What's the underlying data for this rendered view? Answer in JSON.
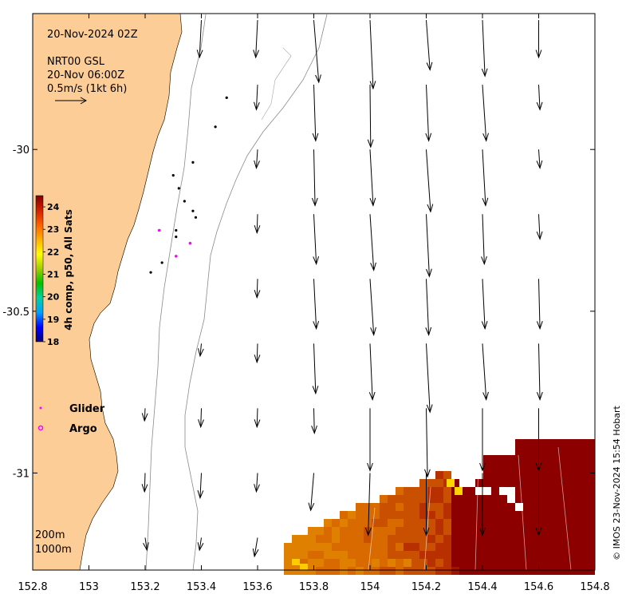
{
  "map": {
    "date_label": "20-Nov-2024 02Z",
    "product_label": "NRT00 GSL",
    "product_time": "20-Nov 06:00Z",
    "scale_label": "0.5m/s (1kt 6h)",
    "x_ticks": [
      "152.8",
      "153",
      "153.2",
      "153.4",
      "153.6",
      "153.8",
      "154",
      "154.2",
      "154.4",
      "154.6",
      "154.8"
    ],
    "y_ticks": [
      "-30",
      "-30.5",
      "-31"
    ],
    "y_tick_values": [
      -30,
      -30.5,
      -31
    ],
    "x_range": [
      152.8,
      154.8
    ],
    "y_range": [
      -29.58,
      -31.3
    ],
    "footer_credit": "© IMOS 23-Nov-2024 15:54 Hobart",
    "isobaths": [
      "200m",
      "1000m"
    ],
    "colors": {
      "land": "#fdcd98",
      "ocean": "#ffffff",
      "contour": "#888888",
      "argo": "#ff00ff"
    }
  },
  "colorbar": {
    "title": "4h comp, p50, All Sats",
    "ticks": [
      "24",
      "23",
      "22",
      "21",
      "20",
      "19",
      "18"
    ],
    "range": [
      18,
      24.5
    ],
    "stops": [
      "#000080",
      "#0000ff",
      "#00a0ff",
      "#00d0a0",
      "#00c000",
      "#a0d000",
      "#ffff00",
      "#ffb000",
      "#ff6000",
      "#d02000",
      "#800000"
    ]
  },
  "legend": {
    "glider_label": "Glider",
    "argo_label": "Argo"
  },
  "velocity_vectors": [
    {
      "lon": 153.4,
      "lat": -29.6,
      "u": -0.03,
      "v": -0.6
    },
    {
      "lon": 153.6,
      "lat": -29.6,
      "u": -0.03,
      "v": -0.6
    },
    {
      "lon": 153.8,
      "lat": -29.6,
      "u": 0.08,
      "v": -1.0
    },
    {
      "lon": 154.0,
      "lat": -29.6,
      "u": 0.05,
      "v": -1.1
    },
    {
      "lon": 154.2,
      "lat": -29.6,
      "u": 0.06,
      "v": -0.8
    },
    {
      "lon": 154.4,
      "lat": -29.6,
      "u": 0.04,
      "v": -0.9
    },
    {
      "lon": 154.6,
      "lat": -29.6,
      "u": 0.0,
      "v": -0.6
    },
    {
      "lon": 153.6,
      "lat": -29.8,
      "u": -0.02,
      "v": -0.4
    },
    {
      "lon": 153.8,
      "lat": -29.8,
      "u": 0.03,
      "v": -0.9
    },
    {
      "lon": 154.0,
      "lat": -29.8,
      "u": 0.01,
      "v": -1.0
    },
    {
      "lon": 154.2,
      "lat": -29.8,
      "u": 0.04,
      "v": -0.9
    },
    {
      "lon": 154.4,
      "lat": -29.8,
      "u": 0.06,
      "v": -0.9
    },
    {
      "lon": 154.6,
      "lat": -29.8,
      "u": 0.02,
      "v": -0.4
    },
    {
      "lon": 153.6,
      "lat": -30.0,
      "u": -0.02,
      "v": -0.3
    },
    {
      "lon": 153.8,
      "lat": -30.0,
      "u": 0.02,
      "v": -0.9
    },
    {
      "lon": 154.0,
      "lat": -30.0,
      "u": 0.05,
      "v": -0.9
    },
    {
      "lon": 154.2,
      "lat": -30.0,
      "u": 0.07,
      "v": -1.0
    },
    {
      "lon": 154.4,
      "lat": -30.0,
      "u": 0.05,
      "v": -0.9
    },
    {
      "lon": 154.6,
      "lat": -30.0,
      "u": 0.02,
      "v": -0.3
    },
    {
      "lon": 153.6,
      "lat": -30.2,
      "u": -0.01,
      "v": -0.3
    },
    {
      "lon": 153.8,
      "lat": -30.2,
      "u": 0.04,
      "v": -0.8
    },
    {
      "lon": 154.0,
      "lat": -30.2,
      "u": 0.06,
      "v": -0.9
    },
    {
      "lon": 154.2,
      "lat": -30.2,
      "u": 0.05,
      "v": -1.0
    },
    {
      "lon": 154.4,
      "lat": -30.2,
      "u": 0.03,
      "v": -0.8
    },
    {
      "lon": 154.6,
      "lat": -30.2,
      "u": 0.02,
      "v": -0.4
    },
    {
      "lon": 153.6,
      "lat": -30.4,
      "u": -0.01,
      "v": -0.3
    },
    {
      "lon": 153.8,
      "lat": -30.4,
      "u": 0.04,
      "v": -0.8
    },
    {
      "lon": 154.0,
      "lat": -30.4,
      "u": 0.06,
      "v": -0.9
    },
    {
      "lon": 154.2,
      "lat": -30.4,
      "u": 0.04,
      "v": -0.9
    },
    {
      "lon": 154.4,
      "lat": -30.4,
      "u": 0.04,
      "v": -0.8
    },
    {
      "lon": 154.6,
      "lat": -30.4,
      "u": 0.02,
      "v": -0.8
    },
    {
      "lon": 153.4,
      "lat": -30.6,
      "u": -0.02,
      "v": -0.2
    },
    {
      "lon": 153.6,
      "lat": -30.6,
      "u": -0.01,
      "v": -0.3
    },
    {
      "lon": 153.8,
      "lat": -30.6,
      "u": 0.03,
      "v": -0.8
    },
    {
      "lon": 154.0,
      "lat": -30.6,
      "u": 0.04,
      "v": -0.9
    },
    {
      "lon": 154.2,
      "lat": -30.6,
      "u": 0.06,
      "v": -1.1
    },
    {
      "lon": 154.4,
      "lat": -30.6,
      "u": 0.06,
      "v": -0.9
    },
    {
      "lon": 154.6,
      "lat": -30.6,
      "u": 0.02,
      "v": -0.9
    },
    {
      "lon": 153.2,
      "lat": -30.8,
      "u": -0.01,
      "v": -0.2
    },
    {
      "lon": 153.4,
      "lat": -30.8,
      "u": -0.01,
      "v": -0.3
    },
    {
      "lon": 153.6,
      "lat": -30.8,
      "u": -0.01,
      "v": -0.3
    },
    {
      "lon": 153.8,
      "lat": -30.8,
      "u": 0.01,
      "v": -0.4
    },
    {
      "lon": 154.0,
      "lat": -30.8,
      "u": 0.0,
      "v": -1.0
    },
    {
      "lon": 154.2,
      "lat": -30.8,
      "u": 0.02,
      "v": -1.1
    },
    {
      "lon": 154.4,
      "lat": -30.8,
      "u": 0.0,
      "v": -1.0
    },
    {
      "lon": 154.6,
      "lat": -30.8,
      "u": 0.0,
      "v": -1.0
    },
    {
      "lon": 153.2,
      "lat": -31.0,
      "u": -0.01,
      "v": -0.3
    },
    {
      "lon": 153.4,
      "lat": -31.0,
      "u": -0.02,
      "v": -0.4
    },
    {
      "lon": 153.6,
      "lat": -31.0,
      "u": -0.02,
      "v": -0.3
    },
    {
      "lon": 153.8,
      "lat": -31.0,
      "u": -0.05,
      "v": -0.6
    },
    {
      "lon": 154.0,
      "lat": -31.0,
      "u": -0.03,
      "v": -1.0
    },
    {
      "lon": 154.2,
      "lat": -31.0,
      "u": 0.0,
      "v": -1.0
    },
    {
      "lon": 154.4,
      "lat": -31.0,
      "u": 0.0,
      "v": -1.0
    },
    {
      "lon": 154.6,
      "lat": -31.0,
      "u": 0.0,
      "v": -1.0
    },
    {
      "lon": 153.2,
      "lat": -31.2,
      "u": 0.03,
      "v": -0.2
    },
    {
      "lon": 153.4,
      "lat": -31.2,
      "u": -0.03,
      "v": -0.2
    },
    {
      "lon": 153.6,
      "lat": -31.2,
      "u": -0.05,
      "v": -0.3
    }
  ],
  "glider_positions": [
    {
      "lon": 153.49,
      "lat": -29.84
    },
    {
      "lon": 153.45,
      "lat": -29.93
    },
    {
      "lon": 153.37,
      "lat": -30.04
    },
    {
      "lon": 153.3,
      "lat": -30.08
    },
    {
      "lon": 153.32,
      "lat": -30.12
    },
    {
      "lon": 153.34,
      "lat": -30.16
    },
    {
      "lon": 153.37,
      "lat": -30.19
    },
    {
      "lon": 153.38,
      "lat": -30.21
    },
    {
      "lon": 153.31,
      "lat": -30.25
    },
    {
      "lon": 153.31,
      "lat": -30.27
    },
    {
      "lon": 153.26,
      "lat": -30.35
    },
    {
      "lon": 153.22,
      "lat": -30.38
    }
  ],
  "argo_positions": [
    {
      "lon": 153.25,
      "lat": -30.25
    },
    {
      "lon": 153.36,
      "lat": -30.29
    },
    {
      "lon": 153.31,
      "lat": -30.33
    }
  ]
}
